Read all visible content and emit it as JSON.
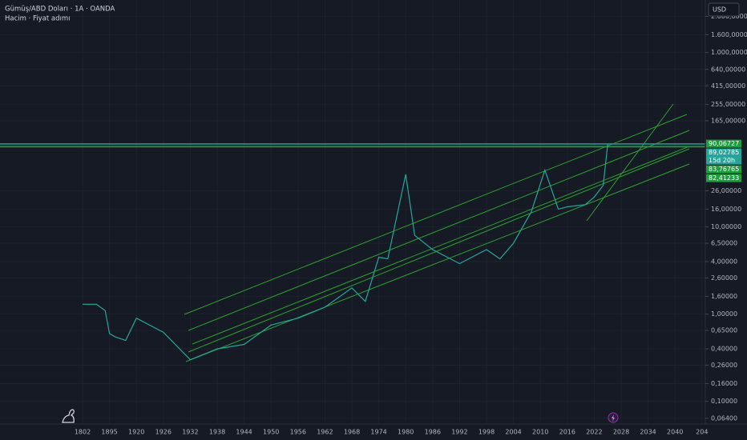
{
  "chart_data": {
    "type": "line",
    "title": "Gümüş/ABD Doları · 1A · OANDA",
    "subtitle": "Hacim · Fiyat adımı",
    "currency": "USD",
    "log_scale": true,
    "grid": true,
    "x": [
      1802,
      1850,
      1880,
      1895,
      1900,
      1910,
      1920,
      1926,
      1932,
      1938,
      1944,
      1950,
      1956,
      1962,
      1968,
      1971,
      1974,
      1976,
      1980,
      1982,
      1986,
      1992,
      1998,
      2001,
      2004,
      2008,
      2011,
      2014,
      2016,
      2020,
      2022,
      2024,
      2025
    ],
    "series": [
      {
        "name": "Gümüş/ABD Doları",
        "color": "#26a69a",
        "values": [
          1.3,
          1.3,
          1.1,
          0.6,
          0.55,
          0.5,
          0.9,
          0.62,
          0.3,
          0.4,
          0.45,
          0.75,
          0.9,
          1.2,
          2.0,
          1.4,
          4.5,
          4.3,
          40,
          8,
          5.5,
          3.8,
          5.5,
          4.3,
          6.5,
          15,
          45,
          16,
          17,
          18,
          22,
          30,
          89.02785
        ]
      }
    ],
    "xlim": [
      1802,
      2046
    ],
    "xticks": [
      1802,
      1895,
      1920,
      1926,
      1932,
      1938,
      1944,
      1950,
      1956,
      1962,
      1968,
      1974,
      1980,
      1986,
      1992,
      1998,
      2004,
      2010,
      2016,
      2022,
      2028,
      2034,
      2040,
      {
        "value": 2046,
        "label": "204"
      }
    ],
    "ylim": [
      0.055,
      4000
    ],
    "yticks": [
      {
        "value": 2600,
        "label": "2.600,00000"
      },
      {
        "value": 1600,
        "label": "1.600,00000"
      },
      {
        "value": 1000,
        "label": "1.000,00000"
      },
      {
        "value": 640,
        "label": "640,00000"
      },
      {
        "value": 415,
        "label": "415,00000"
      },
      {
        "value": 255,
        "label": "255,00000"
      },
      {
        "value": 165,
        "label": "165,00000"
      },
      {
        "value": 26,
        "label": "26,00000"
      },
      {
        "value": 16,
        "label": "16,00000"
      },
      {
        "value": 10,
        "label": "10,00000"
      },
      {
        "value": 6.5,
        "label": "6,50000"
      },
      {
        "value": 4,
        "label": "4,00000"
      },
      {
        "value": 2.6,
        "label": "2,60000"
      },
      {
        "value": 1.6,
        "label": "1,60000"
      },
      {
        "value": 1,
        "label": "1,00000"
      },
      {
        "value": 0.65,
        "label": "0,65000"
      },
      {
        "value": 0.4,
        "label": "0,40000"
      },
      {
        "value": 0.26,
        "label": "0,26000"
      },
      {
        "value": 0.16,
        "label": "0,16000"
      },
      {
        "value": 0.1,
        "label": "0,10000"
      },
      {
        "value": 0.064,
        "label": "0,06400"
      }
    ],
    "price_labels": [
      {
        "value": 90.06727,
        "label": "90,06727",
        "color": "#1e9e3e"
      },
      {
        "value": 89.02785,
        "label": "89,02785",
        "sublabel": "15d 20h",
        "color": "#26a69a"
      },
      {
        "value": 83.76765,
        "label": "83,76765",
        "color": "#1e9e3e"
      },
      {
        "value": 82.41233,
        "label": "82,41233",
        "color": "#1e9e3e"
      }
    ]
  }
}
